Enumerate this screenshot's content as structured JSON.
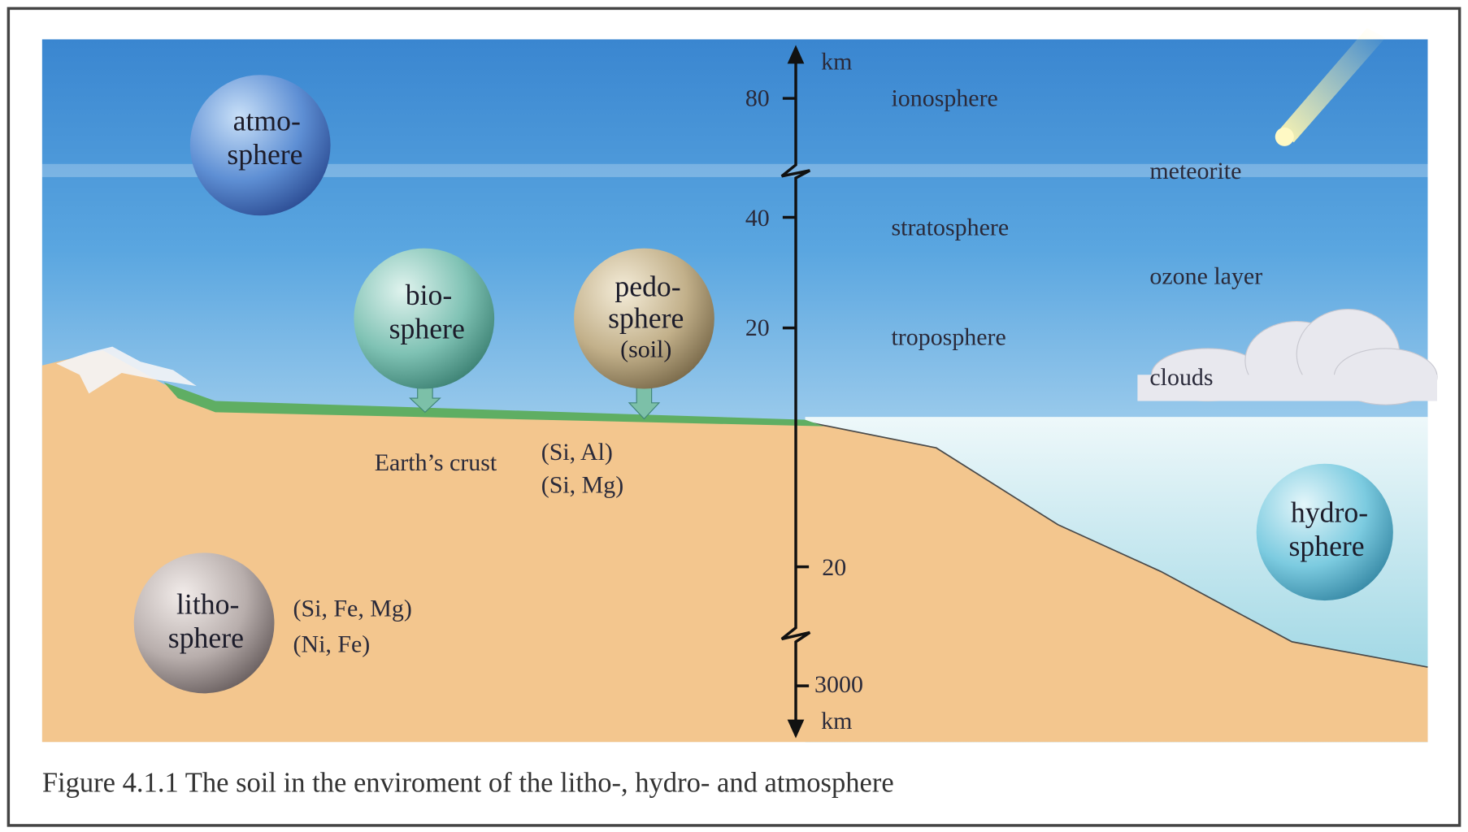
{
  "axis": {
    "unit_top": "km",
    "unit_bottom": "km",
    "ticks_up": [
      "80",
      "40",
      "20"
    ],
    "ticks_down": [
      "20",
      "3000"
    ]
  },
  "layers": {
    "ionosphere": "ionosphere",
    "stratosphere": "stratosphere",
    "troposphere": "troposphere",
    "meteorite": "meteorite",
    "ozone": "ozone layer",
    "clouds": "clouds"
  },
  "spheres": {
    "atmosphere": [
      "atmo-",
      "sphere"
    ],
    "biosphere": [
      "bio-",
      "sphere"
    ],
    "pedosphere": [
      "pedo-",
      "sphere",
      "(soil)"
    ],
    "lithosphere": [
      "litho-",
      "sphere"
    ],
    "hydrosphere": [
      "hydro-",
      "sphere"
    ]
  },
  "crust": {
    "label": "Earth’s crust",
    "upper": "(Si, Al)",
    "lower": "(Si, Mg)"
  },
  "mantle": {
    "upper": "(Si, Fe, Mg)",
    "core": "(Ni, Fe)"
  },
  "caption": "Figure 4.1.1 The soil in the enviroment of the litho-, hydro- and atmosphere"
}
